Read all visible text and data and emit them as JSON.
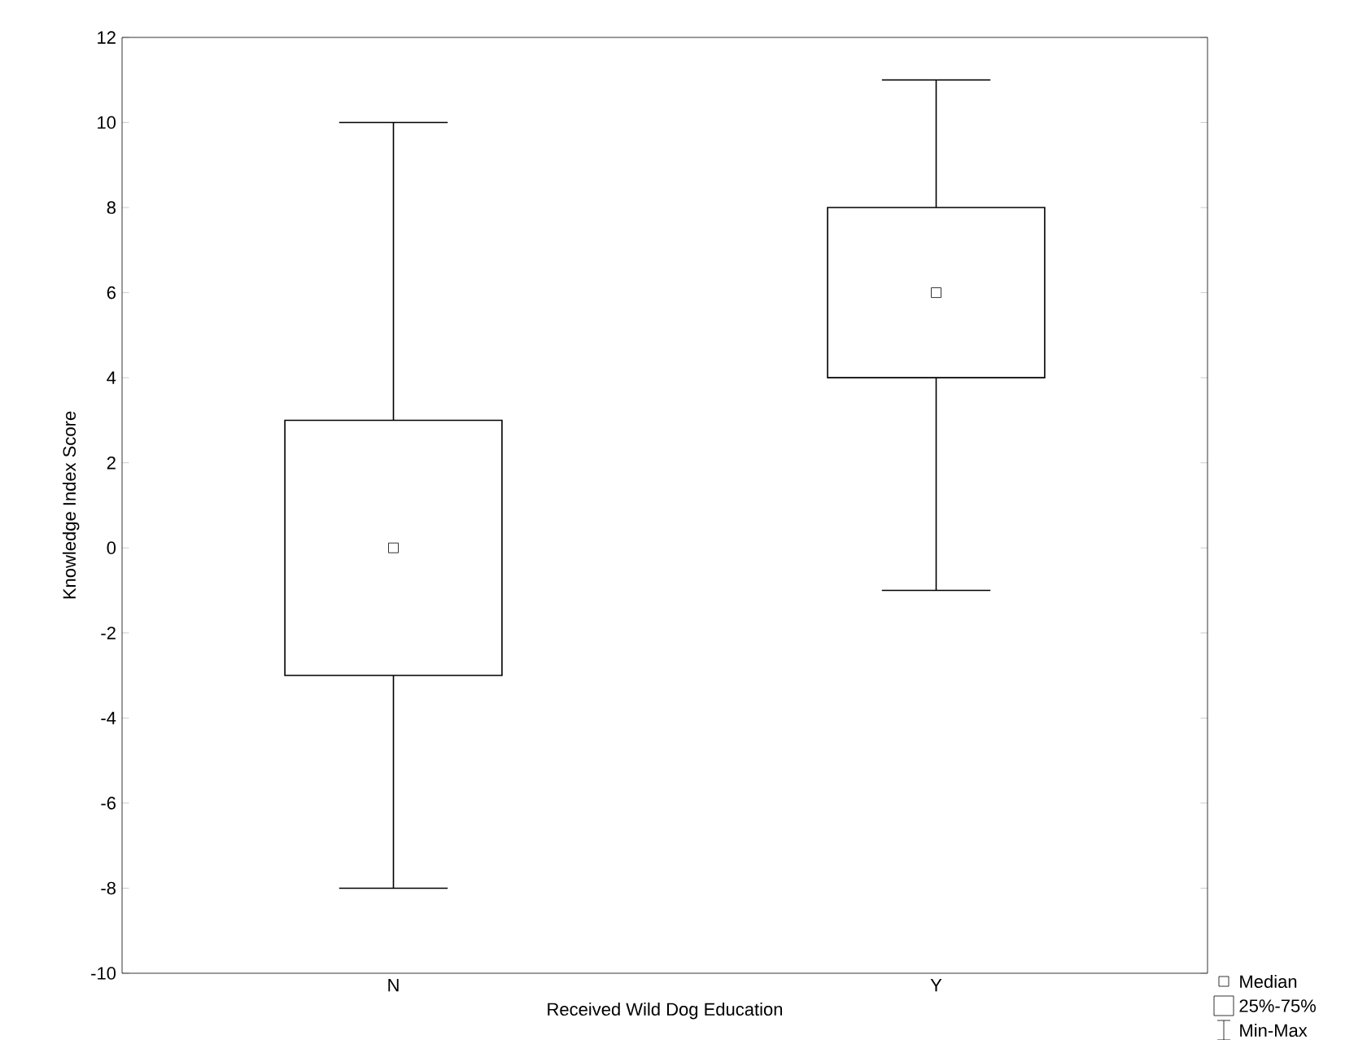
{
  "chart_data": {
    "type": "box",
    "xlabel": "Received Wild Dog Education",
    "ylabel": "Knowledge Index Score",
    "categories": [
      "N",
      "Y"
    ],
    "boxes": [
      {
        "low": -8,
        "q1": -3,
        "median": 0,
        "q3": 3,
        "high": 10
      },
      {
        "low": -1,
        "q1": 4,
        "median": 6,
        "q3": 8,
        "high": 11
      }
    ],
    "ylim": [
      -10,
      12
    ],
    "yticks": [
      -10,
      -8,
      -6,
      -4,
      -2,
      0,
      2,
      4,
      6,
      8,
      10,
      12
    ],
    "grid": false,
    "marker": "square",
    "annotations": [
      "Median",
      "25%-75%",
      "Min-Max"
    ]
  }
}
